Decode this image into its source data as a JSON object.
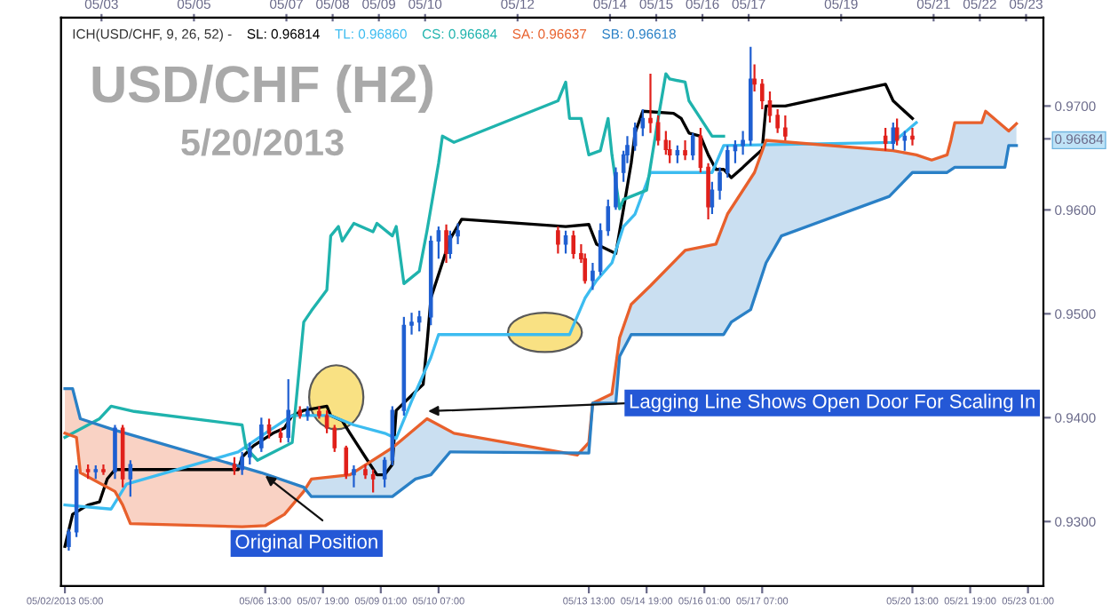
{
  "chart_data": {
    "type": "candlestick",
    "title": "USD/CHF (H2)",
    "subtitle": "5/20/2013",
    "legend_title": "ICH(USD/CHF, 9, 26, 52) -",
    "annotations": [
      {
        "text": "Original Position",
        "x": "2013-05-06T11:00",
        "y": 0.9347
      },
      {
        "text": "Lagging Line Shows Open Door For Scaling In",
        "x": "2013-05-09T23:00",
        "y": 0.9406
      }
    ],
    "x": [
      "2013-05-02T07:00",
      "2013-05-02T11:00",
      "2013-05-02T17:00",
      "2013-05-02T21:00",
      "2013-05-03T01:00",
      "2013-05-03T07:00",
      "2013-05-03T11:00",
      "2013-05-03T15:00",
      "2013-05-05T21:00",
      "2013-05-06T01:00",
      "2013-05-06T05:00",
      "2013-05-06T11:00",
      "2013-05-06T15:00",
      "2013-05-06T21:00",
      "2013-05-07T01:00",
      "2013-05-07T07:00",
      "2013-05-07T11:00",
      "2013-05-07T17:00",
      "2013-05-07T21:00",
      "2013-05-08T01:00",
      "2013-05-08T07:00",
      "2013-05-08T11:00",
      "2013-05-08T17:00",
      "2013-05-08T21:00",
      "2013-05-09T03:00",
      "2013-05-09T07:00",
      "2013-05-09T13:00",
      "2013-05-09T17:00",
      "2013-05-09T21:00",
      "2013-05-10T03:00",
      "2013-05-10T07:00",
      "2013-05-10T11:00",
      "2013-05-10T13:00",
      "2013-05-10T17:00",
      "2013-05-12T21:00",
      "2013-05-13T01:00",
      "2013-05-13T05:00",
      "2013-05-13T09:00",
      "2013-05-13T11:00",
      "2013-05-13T15:00",
      "2013-05-13T19:00",
      "2013-05-13T23:00",
      "2013-05-14T03:00",
      "2013-05-14T07:00",
      "2013-05-14T09:00",
      "2013-05-14T13:00",
      "2013-05-14T17:00",
      "2013-05-14T21:00",
      "2013-05-15T01:00",
      "2013-05-15T05:00",
      "2013-05-15T07:00",
      "2013-05-15T11:00",
      "2013-05-15T15:00",
      "2013-05-15T19:00",
      "2013-05-15T23:00",
      "2013-05-16T03:00",
      "2013-05-16T05:00",
      "2013-05-16T09:00",
      "2013-05-16T13:00",
      "2013-05-16T17:00",
      "2013-05-16T21:00",
      "2013-05-17T01:00",
      "2013-05-17T03:00",
      "2013-05-17T07:00",
      "2013-05-17T11:00",
      "2013-05-17T15:00",
      "2013-05-17T19:00",
      "2013-05-19T23:00",
      "2013-05-20T03:00",
      "2013-05-20T05:00",
      "2013-05-20T09:00",
      "2013-05-20T13:00"
    ],
    "ohlc": [
      [
        0.9276,
        0.9293,
        0.9272,
        0.929
      ],
      [
        0.929,
        0.9354,
        0.9285,
        0.935
      ],
      [
        0.935,
        0.9355,
        0.9341,
        0.9348
      ],
      [
        0.9348,
        0.9354,
        0.9341,
        0.935
      ],
      [
        0.935,
        0.9355,
        0.9345,
        0.9348
      ],
      [
        0.9348,
        0.9393,
        0.9341,
        0.939
      ],
      [
        0.939,
        0.9393,
        0.9333,
        0.9341
      ],
      [
        0.9341,
        0.9359,
        0.9324,
        0.9355
      ],
      [
        0.9355,
        0.9362,
        0.9345,
        0.935
      ],
      [
        0.935,
        0.9367,
        0.9345,
        0.9362
      ],
      [
        0.9362,
        0.9376,
        0.9355,
        0.9371
      ],
      [
        0.9371,
        0.94,
        0.9367,
        0.9393
      ],
      [
        0.9393,
        0.9399,
        0.938,
        0.9385
      ],
      [
        0.9385,
        0.939,
        0.9376,
        0.9381
      ],
      [
        0.9381,
        0.9437,
        0.9376,
        0.9407
      ],
      [
        0.9407,
        0.9411,
        0.9399,
        0.9402
      ],
      [
        0.9402,
        0.9411,
        0.9397,
        0.9406
      ],
      [
        0.9406,
        0.9411,
        0.9399,
        0.9402
      ],
      [
        0.9402,
        0.9407,
        0.9385,
        0.939
      ],
      [
        0.939,
        0.9393,
        0.9367,
        0.9371
      ],
      [
        0.9371,
        0.9373,
        0.9341,
        0.9345
      ],
      [
        0.9345,
        0.9354,
        0.9333,
        0.935
      ],
      [
        0.935,
        0.9355,
        0.9341,
        0.9345
      ],
      [
        0.9345,
        0.935,
        0.9328,
        0.9341
      ],
      [
        0.9341,
        0.9362,
        0.9333,
        0.9359
      ],
      [
        0.9359,
        0.9411,
        0.9354,
        0.9407
      ],
      [
        0.9407,
        0.9497,
        0.9402,
        0.9489
      ],
      [
        0.9489,
        0.9501,
        0.948,
        0.9492
      ],
      [
        0.9492,
        0.9503,
        0.9483,
        0.9497
      ],
      [
        0.9497,
        0.9575,
        0.9489,
        0.957
      ],
      [
        0.957,
        0.9584,
        0.9553,
        0.958
      ],
      [
        0.958,
        0.9586,
        0.9549,
        0.9558
      ],
      [
        0.9558,
        0.958,
        0.9553,
        0.9575
      ],
      [
        0.9575,
        0.9587,
        0.9567,
        0.958
      ],
      [
        0.958,
        0.9584,
        0.9558,
        0.9567
      ],
      [
        0.9567,
        0.958,
        0.9558,
        0.9575
      ],
      [
        0.9575,
        0.958,
        0.9553,
        0.9558
      ],
      [
        0.9558,
        0.9567,
        0.9549,
        0.9553
      ],
      [
        0.9553,
        0.9558,
        0.9529,
        0.9532
      ],
      [
        0.9532,
        0.9549,
        0.9523,
        0.9541
      ],
      [
        0.9541,
        0.9587,
        0.9537,
        0.958
      ],
      [
        0.958,
        0.961,
        0.9575,
        0.9603
      ],
      [
        0.9603,
        0.9641,
        0.96,
        0.9636
      ],
      [
        0.9636,
        0.9657,
        0.9627,
        0.9653
      ],
      [
        0.9653,
        0.9671,
        0.9645,
        0.9662
      ],
      [
        0.9662,
        0.9684,
        0.9657,
        0.9679
      ],
      [
        0.9679,
        0.9697,
        0.9671,
        0.9688
      ],
      [
        0.9688,
        0.9731,
        0.9674,
        0.9684
      ],
      [
        0.9684,
        0.9691,
        0.9662,
        0.9667
      ],
      [
        0.9667,
        0.9676,
        0.9653,
        0.9658
      ],
      [
        0.9658,
        0.9667,
        0.9645,
        0.9653
      ],
      [
        0.9653,
        0.9662,
        0.9645,
        0.9657
      ],
      [
        0.9657,
        0.9667,
        0.9648,
        0.9653
      ],
      [
        0.9653,
        0.9674,
        0.9648,
        0.9671
      ],
      [
        0.9671,
        0.9679,
        0.9636,
        0.9641
      ],
      [
        0.9641,
        0.9645,
        0.9591,
        0.9603
      ],
      [
        0.9603,
        0.9627,
        0.9596,
        0.9619
      ],
      [
        0.9619,
        0.9641,
        0.961,
        0.9636
      ],
      [
        0.9636,
        0.9662,
        0.9631,
        0.9657
      ],
      [
        0.9657,
        0.9667,
        0.9645,
        0.9662
      ],
      [
        0.9662,
        0.9676,
        0.9653,
        0.9667
      ],
      [
        0.9667,
        0.9757,
        0.9662,
        0.9726
      ],
      [
        0.9726,
        0.974,
        0.9714,
        0.9721
      ],
      [
        0.9721,
        0.9726,
        0.9697,
        0.9705
      ],
      [
        0.9705,
        0.9714,
        0.9684,
        0.9691
      ],
      [
        0.9691,
        0.9697,
        0.9674,
        0.9679
      ],
      [
        0.9679,
        0.9691,
        0.9667,
        0.9671
      ],
      [
        0.9671,
        0.9679,
        0.9657,
        0.9664
      ],
      [
        0.9664,
        0.9684,
        0.9658,
        0.9679
      ],
      [
        0.9679,
        0.9688,
        0.9662,
        0.9667
      ],
      [
        0.9667,
        0.9676,
        0.9657,
        0.9671
      ],
      [
        0.9671,
        0.9679,
        0.9662,
        0.9668
      ]
    ],
    "colors": [
      "#1f5fd1",
      "#1f5fd1",
      "#e0201b",
      "#1f5fd1",
      "#e0201b",
      "#1f5fd1",
      "#e0201b",
      "#1f5fd1",
      "#e0201b",
      "#1f5fd1",
      "#1f5fd1",
      "#1f5fd1",
      "#e0201b",
      "#e0201b",
      "#1f5fd1",
      "#e0201b",
      "#1f5fd1",
      "#e0201b",
      "#e0201b",
      "#e0201b",
      "#e0201b",
      "#1f5fd1",
      "#e0201b",
      "#e0201b",
      "#1f5fd1",
      "#1f5fd1",
      "#1f5fd1",
      "#1f5fd1",
      "#1f5fd1",
      "#1f5fd1",
      "#1f5fd1",
      "#e0201b",
      "#1f5fd1",
      "#1f5fd1",
      "#e0201b",
      "#1f5fd1",
      "#e0201b",
      "#e0201b",
      "#e0201b",
      "#1f5fd1",
      "#1f5fd1",
      "#1f5fd1",
      "#1f5fd1",
      "#1f5fd1",
      "#1f5fd1",
      "#1f5fd1",
      "#1f5fd1",
      "#e0201b",
      "#e0201b",
      "#e0201b",
      "#e0201b",
      "#1f5fd1",
      "#e0201b",
      "#1f5fd1",
      "#e0201b",
      "#e0201b",
      "#1f5fd1",
      "#1f5fd1",
      "#1f5fd1",
      "#1f5fd1",
      "#1f5fd1",
      "#1f5fd1",
      "#e0201b",
      "#e0201b",
      "#e0201b",
      "#e0201b",
      "#e0201b",
      "#e0201b",
      "#1f5fd1",
      "#e0201b",
      "#1f5fd1",
      "#e0201b"
    ],
    "series": [
      {
        "name": "SL: 0.96814",
        "type": "line",
        "color": "#000000",
        "x": [
          "2013-05-02T05:00",
          "2013-05-02T09:00",
          "2013-05-02T17:00",
          "2013-05-02T23:00",
          "2013-05-03T03:00",
          "2013-05-03T07:00",
          "2013-05-05T23:00",
          "2013-05-06T01:00",
          "2013-05-06T07:00",
          "2013-05-06T17:00",
          "2013-05-06T23:00",
          "2013-05-07T03:00",
          "2013-05-07T09:00",
          "2013-05-07T21:00",
          "2013-05-07T23:00",
          "2013-05-08T05:00",
          "2013-05-08T09:00",
          "2013-05-08T17:00",
          "2013-05-08T23:00",
          "2013-05-09T03:00",
          "2013-05-09T07:00",
          "2013-05-09T09:00",
          "2013-05-09T19:00",
          "2013-05-09T23:00",
          "2013-05-10T01:00",
          "2013-05-10T03:00",
          "2013-05-10T13:00",
          "2013-05-10T19:00",
          "2013-05-13T01:00",
          "2013-05-13T13:00",
          "2013-05-13T17:00",
          "2013-05-14T03:00",
          "2013-05-14T07:00",
          "2013-05-14T11:00",
          "2013-05-14T13:00",
          "2013-05-14T17:00",
          "2013-05-15T09:00",
          "2013-05-15T13:00",
          "2013-05-15T17:00",
          "2013-05-15T23:00",
          "2013-05-16T03:00",
          "2013-05-16T07:00",
          "2013-05-16T11:00",
          "2013-05-16T15:00",
          "2013-05-16T21:00",
          "2013-05-17T01:00",
          "2013-05-17T07:00",
          "2013-05-17T09:00",
          "2013-05-17T19:00",
          "2013-05-19T23:00",
          "2013-05-20T03:00",
          "2013-05-20T13:00"
        ],
        "values": [
          0.9276,
          0.9307,
          0.9316,
          0.9319,
          0.9341,
          0.935,
          0.935,
          0.9362,
          0.9373,
          0.9385,
          0.939,
          0.9402,
          0.9407,
          0.9411,
          0.9402,
          0.9397,
          0.9385,
          0.9362,
          0.9345,
          0.9345,
          0.9355,
          0.9407,
          0.9425,
          0.9432,
          0.9471,
          0.9515,
          0.9572,
          0.9591,
          0.9584,
          0.9586,
          0.9567,
          0.9558,
          0.9601,
          0.9645,
          0.9674,
          0.9695,
          0.9693,
          0.9688,
          0.9674,
          0.9671,
          0.9653,
          0.9639,
          0.9639,
          0.9631,
          0.9641,
          0.9648,
          0.9658,
          0.97,
          0.97,
          0.9721,
          0.9705,
          0.9688
        ]
      },
      {
        "name": "TL: 0.96860",
        "type": "line",
        "color": "#3cbcf0",
        "x": [
          "2013-05-02T05:00",
          "2013-05-03T05:00",
          "2013-05-03T13:00",
          "2013-05-05T23:00",
          "2013-05-06T13:00",
          "2013-05-07T03:00",
          "2013-05-07T23:00",
          "2013-05-08T11:00",
          "2013-05-09T03:00",
          "2013-05-09T09:00",
          "2013-05-09T17:00",
          "2013-05-10T03:00",
          "2013-05-10T07:00",
          "2013-05-13T03:00",
          "2013-05-13T11:00",
          "2013-05-13T17:00",
          "2013-05-14T01:00",
          "2013-05-14T07:00",
          "2013-05-14T13:00",
          "2013-05-14T21:00",
          "2013-05-16T05:00",
          "2013-05-16T11:00",
          "2013-05-20T03:00",
          "2013-05-20T15:00"
        ],
        "values": [
          0.9316,
          0.9312,
          0.9336,
          0.9367,
          0.9385,
          0.9402,
          0.9402,
          0.9393,
          0.9385,
          0.938,
          0.9416,
          0.9458,
          0.948,
          0.948,
          0.9515,
          0.9532,
          0.9549,
          0.9584,
          0.9596,
          0.9636,
          0.9636,
          0.9662,
          0.9665,
          0.9684
        ]
      },
      {
        "name": "CS: 0.96684",
        "type": "line",
        "color": "#1fb3ad",
        "x": [
          "2013-05-02T05:00",
          "2013-05-02T23:00",
          "2013-05-03T05:00",
          "2013-05-03T17:00",
          "2013-05-06T01:00",
          "2013-05-06T03:00",
          "2013-05-06T09:00",
          "2013-05-07T03:00",
          "2013-05-07T09:00",
          "2013-05-07T13:00",
          "2013-05-07T21:00",
          "2013-05-07T23:00",
          "2013-05-08T03:00",
          "2013-05-08T05:00",
          "2013-05-08T11:00",
          "2013-05-08T21:00",
          "2013-05-08T23:00",
          "2013-05-09T07:00",
          "2013-05-09T09:00",
          "2013-05-09T13:00",
          "2013-05-09T21:00",
          "2013-05-10T01:00",
          "2013-05-10T07:00",
          "2013-05-10T09:00",
          "2013-05-10T15:00",
          "2013-05-12T21:00",
          "2013-05-13T01:00",
          "2013-05-13T03:00",
          "2013-05-13T09:00",
          "2013-05-13T13:00",
          "2013-05-13T19:00",
          "2013-05-13T23:00",
          "2013-05-14T01:00",
          "2013-05-14T05:00",
          "2013-05-14T07:00",
          "2013-05-14T19:00",
          "2013-05-15T01:00",
          "2013-05-15T05:00",
          "2013-05-15T07:00",
          "2013-05-15T15:00",
          "2013-05-15T17:00",
          "2013-05-15T23:00",
          "2013-05-16T05:00",
          "2013-05-16T11:00"
        ],
        "values": [
          0.9381,
          0.9399,
          0.9411,
          0.9406,
          0.9393,
          0.9371,
          0.9359,
          0.9376,
          0.9492,
          0.9503,
          0.9523,
          0.9575,
          0.9584,
          0.957,
          0.9587,
          0.9579,
          0.9587,
          0.9575,
          0.9584,
          0.9529,
          0.9541,
          0.958,
          0.9645,
          0.9671,
          0.9665,
          0.9705,
          0.9723,
          0.9688,
          0.9688,
          0.9653,
          0.9657,
          0.9688,
          0.9653,
          0.9601,
          0.961,
          0.9619,
          0.9688,
          0.9731,
          0.9726,
          0.9723,
          0.9705,
          0.9688,
          0.9671,
          0.9671
        ]
      },
      {
        "name": "SA: 0.96637",
        "type": "line",
        "color": "#e8602c",
        "x": [
          "2013-05-02T05:00",
          "2013-05-02T11:00",
          "2013-05-02T13:00",
          "2013-05-03T07:00",
          "2013-05-03T11:00",
          "2013-05-03T15:00",
          "2013-05-06T01:00",
          "2013-05-06T13:00",
          "2013-05-06T23:00",
          "2013-05-07T09:00",
          "2013-05-07T13:00",
          "2013-05-08T09:00",
          "2013-05-09T07:00",
          "2013-05-10T01:00",
          "2013-05-10T15:00",
          "2013-05-13T07:00",
          "2013-05-13T13:00",
          "2013-05-13T15:00",
          "2013-05-14T01:00",
          "2013-05-14T05:00",
          "2013-05-14T11:00",
          "2013-05-14T21:00",
          "2013-05-15T15:00",
          "2013-05-16T07:00",
          "2013-05-16T13:00",
          "2013-05-17T03:00",
          "2013-05-17T09:00",
          "2013-05-20T03:00",
          "2013-05-20T15:00",
          "2013-05-20T23:00",
          "2013-05-21T07:00",
          "2013-05-21T09:00",
          "2013-05-21T11:00",
          "2013-05-22T01:00",
          "2013-05-22T03:00",
          "2013-05-22T15:00",
          "2013-05-22T19:00"
        ],
        "values": [
          0.9385,
          0.9381,
          0.9347,
          0.9329,
          0.9316,
          0.9298,
          0.9295,
          0.9296,
          0.9307,
          0.9329,
          0.9341,
          0.9345,
          0.9371,
          0.9399,
          0.9385,
          0.9364,
          0.9376,
          0.9414,
          0.9423,
          0.9477,
          0.9509,
          0.9527,
          0.9561,
          0.9567,
          0.9596,
          0.9636,
          0.9667,
          0.9657,
          0.9653,
          0.9648,
          0.9653,
          0.9667,
          0.9684,
          0.9684,
          0.9695,
          0.9676,
          0.9683
        ]
      },
      {
        "name": "SB: 0.96618",
        "type": "line",
        "color": "#2a80c6",
        "x": [
          "2013-05-02T05:00",
          "2013-05-02T09:00",
          "2013-05-02T13:00",
          "2013-05-03T07:00",
          "2013-05-06T11:00",
          "2013-05-07T09:00",
          "2013-05-07T13:00",
          "2013-05-09T07:00",
          "2013-05-09T19:00",
          "2013-05-10T03:00",
          "2013-05-10T13:00",
          "2013-05-13T13:00",
          "2013-05-13T15:00",
          "2013-05-14T03:00",
          "2013-05-14T05:00",
          "2013-05-14T11:00",
          "2013-05-16T11:00",
          "2013-05-16T15:00",
          "2013-05-17T01:00",
          "2013-05-17T09:00",
          "2013-05-17T17:00",
          "2013-05-20T01:00",
          "2013-05-20T13:00",
          "2013-05-21T07:00",
          "2013-05-21T11:00",
          "2013-05-22T13:00",
          "2013-05-22T15:00",
          "2013-05-22T19:00"
        ],
        "values": [
          0.9428,
          0.9428,
          0.9399,
          0.9388,
          0.9347,
          0.9333,
          0.9324,
          0.9324,
          0.9341,
          0.9345,
          0.9367,
          0.9366,
          0.9414,
          0.9414,
          0.9459,
          0.948,
          0.948,
          0.9492,
          0.9504,
          0.9549,
          0.9575,
          0.9613,
          0.9636,
          0.9636,
          0.9641,
          0.9641,
          0.9662,
          0.9662
        ]
      }
    ],
    "xlim": [
      "2013-05-02T03:00",
      "2013-05-23T09:00"
    ],
    "ylim": [
      0.9238,
      0.9785
    ],
    "xticks": [
      {
        "value": "2013-05-02T05:00",
        "label": "05/02/2013 05:00"
      },
      {
        "value": "2013-05-06T13:00",
        "label": "05/06 13:00"
      },
      {
        "value": "2013-05-07T19:00",
        "label": "05/07 19:00"
      },
      {
        "value": "2013-05-09T01:00",
        "label": "05/09 01:00"
      },
      {
        "value": "2013-05-10T07:00",
        "label": "05/10 07:00"
      },
      {
        "value": "2013-05-13T13:00",
        "label": "05/13 13:00"
      },
      {
        "value": "2013-05-14T19:00",
        "label": "05/14 19:00"
      },
      {
        "value": "2013-05-16T01:00",
        "label": "05/16 01:00"
      },
      {
        "value": "2013-05-17T07:00",
        "label": "05/17 07:00"
      },
      {
        "value": "2013-05-20T13:00",
        "label": "05/20 13:00"
      },
      {
        "value": "2013-05-21T19:00",
        "label": "05/21 19:00"
      },
      {
        "value": "2013-05-23T01:00",
        "label": "05/23 01:00"
      }
    ],
    "x2lim": [
      "2013-05-02T03:00",
      "2013-05-23T09:00"
    ],
    "x2ticks": [
      {
        "value": "2013-05-03",
        "label": "05/03"
      },
      {
        "value": "2013-05-05",
        "label": "05/05"
      },
      {
        "value": "2013-05-07",
        "label": "05/07"
      },
      {
        "value": "2013-05-08",
        "label": "05/08"
      },
      {
        "value": "2013-05-09",
        "label": "05/09"
      },
      {
        "value": "2013-05-10",
        "label": "05/10"
      },
      {
        "value": "2013-05-12",
        "label": "05/12"
      },
      {
        "value": "2013-05-14",
        "label": "05/14"
      },
      {
        "value": "2013-05-15",
        "label": "05/15"
      },
      {
        "value": "2013-05-16",
        "label": "05/16"
      },
      {
        "value": "2013-05-17",
        "label": "05/17"
      },
      {
        "value": "2013-05-19",
        "label": "05/19"
      },
      {
        "value": "2013-05-21",
        "label": "05/21"
      },
      {
        "value": "2013-05-22",
        "label": "05/22"
      },
      {
        "value": "2013-05-23",
        "label": "05/23"
      }
    ],
    "yticks": [
      {
        "value": 0.93,
        "label": "0.9300"
      },
      {
        "value": 0.94,
        "label": "0.9400"
      },
      {
        "value": 0.95,
        "label": "0.9500"
      },
      {
        "value": 0.96,
        "label": "0.9600"
      },
      {
        "value": 0.96684,
        "label": "0.96684"
      },
      {
        "value": 0.97,
        "label": "0.9700"
      }
    ],
    "legend": "top left",
    "grid": false
  }
}
